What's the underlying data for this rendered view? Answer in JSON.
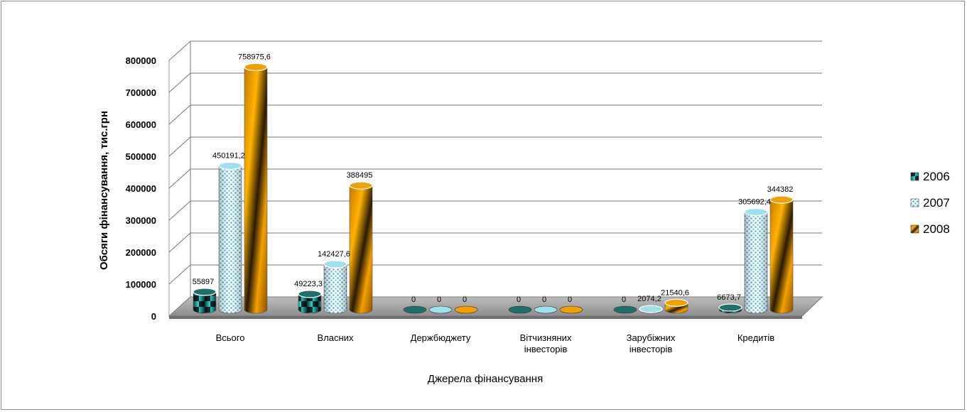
{
  "chart_data": {
    "type": "bar",
    "subtype": "3d-cylinder",
    "xlabel": "Джерела фінансування",
    "ylabel": "Обсяги фінансування, тис.грн",
    "ylim": [
      0,
      800000
    ],
    "ytick_step": 100000,
    "categories": [
      [
        "Всього"
      ],
      [
        "Власних"
      ],
      [
        "Держбюджету"
      ],
      [
        "Вітчизняних",
        "інвесторів"
      ],
      [
        "Зарубіжних",
        "інвесторів"
      ],
      [
        "Кредитів"
      ]
    ],
    "series": [
      {
        "name": "2006",
        "values": [
          55897,
          49223.3,
          0,
          0,
          0,
          6673.7
        ],
        "labels": [
          "55897",
          "49223,3",
          "0",
          "0",
          "0",
          "6673,7"
        ],
        "color": "#1a8a84"
      },
      {
        "name": "2007",
        "values": [
          450191.2,
          142427.6,
          0,
          0,
          2074.2,
          305692.4
        ],
        "labels": [
          "450191,2",
          "142427,6",
          "0",
          "0",
          "2074,2",
          "305692,4"
        ],
        "color": "#7fd3e8"
      },
      {
        "name": "2008",
        "values": [
          758975.6,
          388495,
          0,
          0,
          21540.6,
          344382
        ],
        "labels": [
          "758975,6",
          "388495",
          "0",
          "0",
          "21540,6",
          "344382"
        ],
        "color": "#e69500"
      }
    ],
    "grid": true,
    "legend_position": "right"
  }
}
